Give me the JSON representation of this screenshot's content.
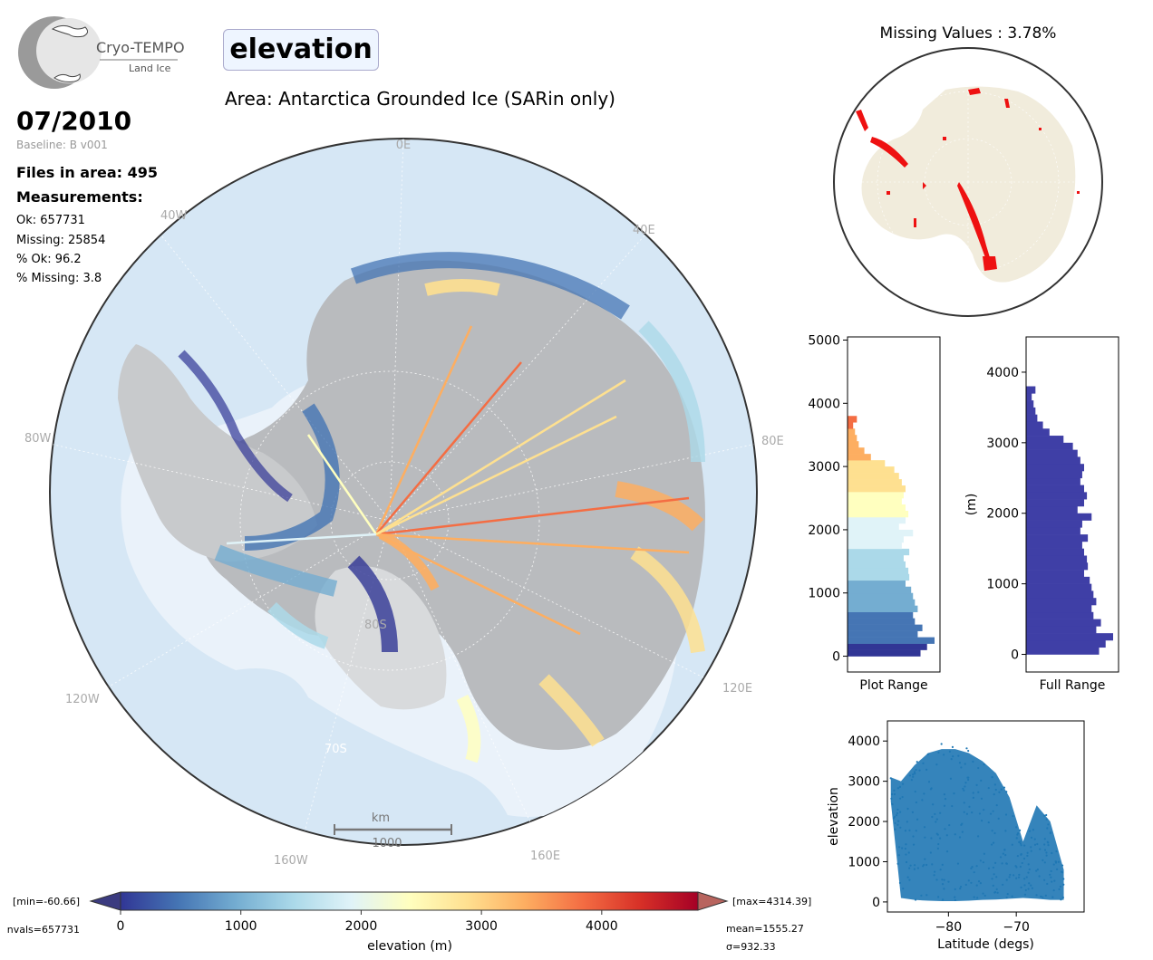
{
  "header": {
    "logo_name": "Cryo-TEMPO",
    "logo_sub": "Land Ice",
    "parameter": "elevation",
    "area": "Area: Antarctica Grounded Ice (SARin only)"
  },
  "info": {
    "date": "07/2010",
    "baseline": "Baseline: B v001",
    "files": "Files in area: 495",
    "measurements_title": "Measurements:",
    "ok": "Ok: 657731",
    "missing": "Missing: 25854",
    "pct_ok": "% Ok: 96.2",
    "pct_missing": "% Missing: 3.8"
  },
  "map": {
    "lon_labels": [
      "0E",
      "40E",
      "80E",
      "120E",
      "160E",
      "160W",
      "120W",
      "80W",
      "40W"
    ],
    "lat_labels": [
      "80S",
      "70S"
    ],
    "scale_unit": "km",
    "scale_value": "1000"
  },
  "missing": {
    "title": "Missing Values : 3.78%"
  },
  "colorbar": {
    "label": "elevation (m)",
    "ticks": [
      "0",
      "1000",
      "2000",
      "3000",
      "4000"
    ],
    "min_text": "[min=-60.66]",
    "max_text": "[max=4314.39]",
    "nvals_text": "nvals=657731",
    "mean_text": "mean=1555.27",
    "sigma_text": "σ=932.33",
    "colors": [
      "#313695",
      "#4575b4",
      "#74add1",
      "#abd9e9",
      "#e0f3f8",
      "#ffffbf",
      "#fee090",
      "#fdae61",
      "#f46d43",
      "#d73027",
      "#a50026"
    ]
  },
  "chart_data": [
    {
      "type": "bar",
      "orientation": "horizontal",
      "title": "",
      "xlabel": "Plot Range",
      "ylabel": "",
      "ylim": [
        -250,
        5050
      ],
      "yticks": [
        "0",
        "1000",
        "2000",
        "3000",
        "4000",
        "5000"
      ],
      "bin_width": 100,
      "bins": [
        0,
        100,
        200,
        300,
        400,
        500,
        600,
        700,
        800,
        900,
        1000,
        1100,
        1200,
        1300,
        1400,
        1500,
        1600,
        1700,
        1800,
        1900,
        2000,
        2100,
        2200,
        2300,
        2400,
        2500,
        2600,
        2700,
        2800,
        2900,
        3000,
        3100,
        3200,
        3300,
        3400,
        3500,
        3600,
        3700
      ],
      "counts": [
        0.78,
        0.85,
        0.93,
        0.75,
        0.8,
        0.72,
        0.7,
        0.75,
        0.72,
        0.7,
        0.68,
        0.62,
        0.66,
        0.65,
        0.62,
        0.6,
        0.66,
        0.58,
        0.6,
        0.7,
        0.55,
        0.62,
        0.65,
        0.62,
        0.58,
        0.6,
        0.62,
        0.58,
        0.55,
        0.5,
        0.4,
        0.25,
        0.18,
        0.12,
        0.1,
        0.08,
        0.06,
        0.1
      ]
    },
    {
      "type": "bar",
      "orientation": "horizontal",
      "title": "",
      "xlabel": "Full Range",
      "ylabel": "(m)",
      "ylim": [
        -250,
        4500
      ],
      "yticks": [
        "0",
        "1000",
        "2000",
        "3000",
        "4000"
      ],
      "color": "#3f3fa6",
      "bin_width": 100,
      "bins": [
        0,
        100,
        200,
        300,
        400,
        500,
        600,
        700,
        800,
        900,
        1000,
        1100,
        1200,
        1300,
        1400,
        1500,
        1600,
        1700,
        1800,
        1900,
        2000,
        2100,
        2200,
        2300,
        2400,
        2500,
        2600,
        2700,
        2800,
        2900,
        3000,
        3100,
        3200,
        3300,
        3400,
        3500,
        3600,
        3700
      ],
      "counts": [
        0.78,
        0.85,
        0.93,
        0.75,
        0.8,
        0.72,
        0.7,
        0.75,
        0.72,
        0.7,
        0.68,
        0.62,
        0.66,
        0.65,
        0.62,
        0.6,
        0.66,
        0.58,
        0.6,
        0.7,
        0.55,
        0.62,
        0.65,
        0.62,
        0.58,
        0.6,
        0.62,
        0.58,
        0.55,
        0.5,
        0.4,
        0.25,
        0.18,
        0.12,
        0.1,
        0.08,
        0.06,
        0.1
      ]
    },
    {
      "type": "scatter",
      "title": "",
      "xlabel": "Latitude (degs)",
      "ylabel": "elevation",
      "xlim": [
        -89,
        -60
      ],
      "ylim": [
        -250,
        4500
      ],
      "xticks": [
        "−80",
        "−70"
      ],
      "yticks": [
        "0",
        "1000",
        "2000",
        "3000",
        "4000"
      ],
      "color": "#1f77b4",
      "envelope": [
        [
          -88.5,
          2500,
          3100
        ],
        [
          -87,
          100,
          3000
        ],
        [
          -85,
          50,
          3400
        ],
        [
          -83,
          30,
          3700
        ],
        [
          -81,
          20,
          3800
        ],
        [
          -79,
          20,
          3800
        ],
        [
          -77,
          30,
          3700
        ],
        [
          -75,
          50,
          3500
        ],
        [
          -73,
          60,
          3200
        ],
        [
          -71,
          80,
          2600
        ],
        [
          -69,
          100,
          1500
        ],
        [
          -67,
          80,
          2400
        ],
        [
          -65,
          50,
          2000
        ],
        [
          -63,
          50,
          800
        ]
      ]
    }
  ]
}
